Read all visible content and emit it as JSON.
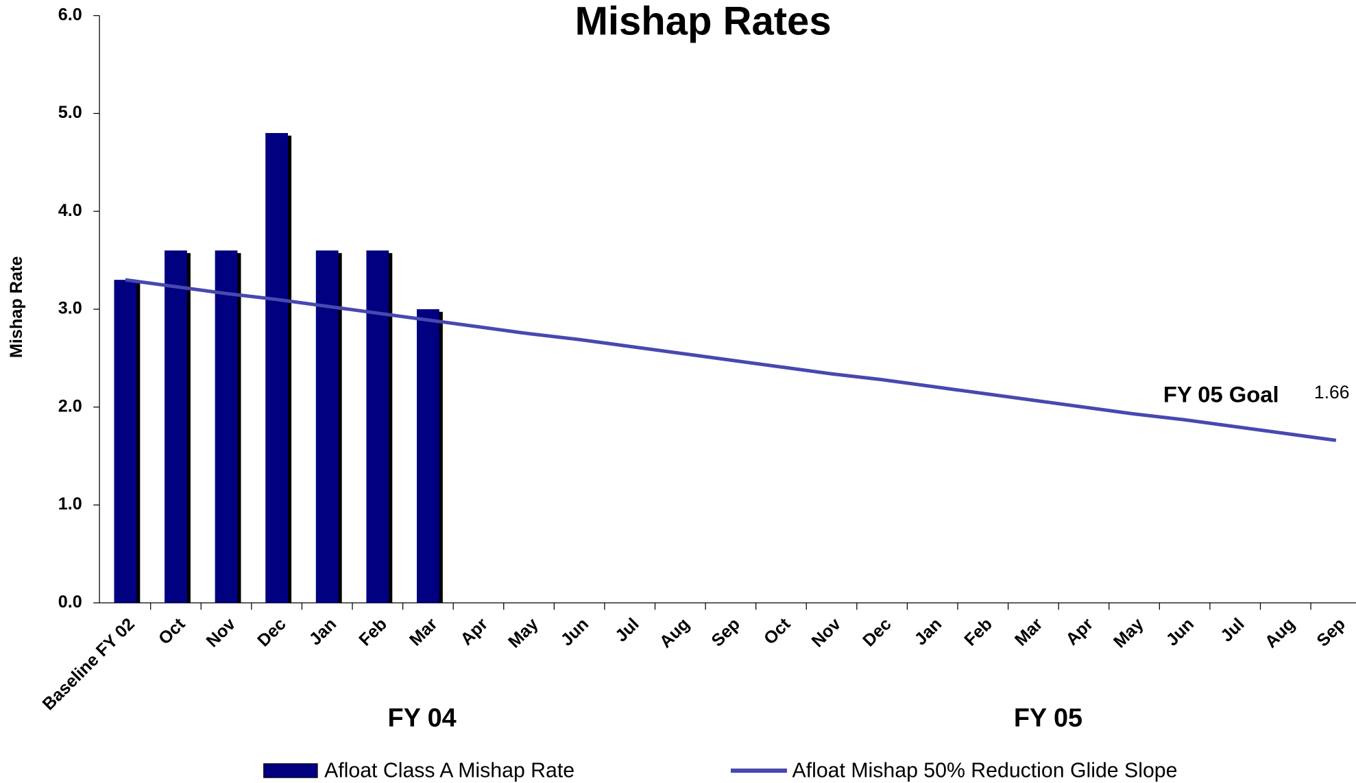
{
  "chart_data": {
    "type": "bar_line",
    "title": "Mishap Rates",
    "y_label": "Mishap Rate",
    "categories": [
      "Baseline FY 02",
      "Oct",
      "Nov",
      "Dec",
      "Jan",
      "Feb",
      "Mar",
      "Apr",
      "May",
      "Jun",
      "Jul",
      "Aug",
      "Sep",
      "Oct",
      "Nov",
      "Dec",
      "Jan",
      "Feb",
      "Mar",
      "Apr",
      "May",
      "Jun",
      "Jul",
      "Aug",
      "Sep"
    ],
    "groups": [
      {
        "label": "FY 04"
      },
      {
        "label": "FY 05"
      }
    ],
    "series": [
      {
        "name": "Afloat Class A Mishap Rate",
        "type": "bar",
        "color": "#000080",
        "values": [
          3.3,
          3.6,
          3.6,
          4.8,
          3.6,
          3.6,
          3.0,
          null,
          null,
          null,
          null,
          null,
          null,
          null,
          null,
          null,
          null,
          null,
          null,
          null,
          null,
          null,
          null,
          null,
          null
        ]
      },
      {
        "name": "Afloat Mishap 50% Reduction Glide Slope",
        "type": "line",
        "color": "#4848b0",
        "values": [
          3.3,
          3.23,
          3.16,
          3.1,
          3.03,
          2.96,
          2.89,
          2.82,
          2.75,
          2.69,
          2.62,
          2.55,
          2.48,
          2.41,
          2.34,
          2.28,
          2.21,
          2.14,
          2.07,
          2.0,
          1.93,
          1.87,
          1.8,
          1.73,
          1.66
        ]
      }
    ],
    "annotations": [
      {
        "text": "FY 05 Goal"
      },
      {
        "text": "1.66"
      }
    ],
    "ylim": [
      0,
      6
    ],
    "yticks": [
      {
        "value": 0,
        "label": "0.0"
      },
      {
        "value": 1,
        "label": "1.0"
      },
      {
        "value": 2,
        "label": "2.0"
      },
      {
        "value": 3,
        "label": "3.0"
      },
      {
        "value": 4,
        "label": "4.0"
      },
      {
        "value": 5,
        "label": "5.0"
      },
      {
        "value": 6,
        "label": "6.0"
      }
    ]
  }
}
